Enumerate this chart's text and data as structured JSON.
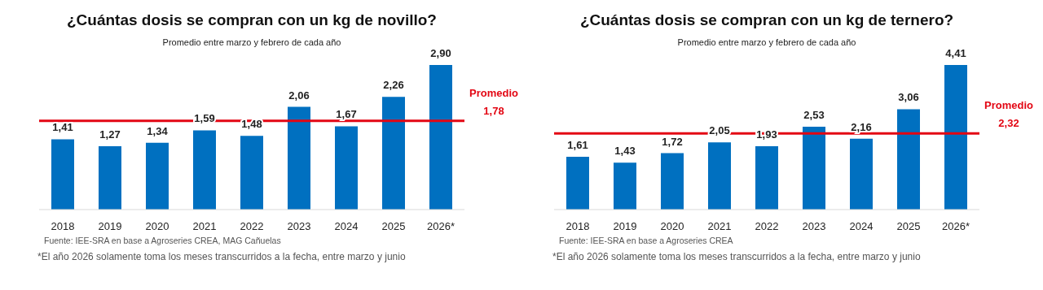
{
  "chart_data": [
    {
      "type": "bar",
      "title": "¿Cuántas dosis se compran con un kg de novillo?",
      "subtitle": "Promedio entre marzo y febrero de cada año",
      "categories": [
        "2018",
        "2019",
        "2020",
        "2021",
        "2022",
        "2023",
        "2024",
        "2025",
        "2026*"
      ],
      "values": [
        1.41,
        1.27,
        1.34,
        1.59,
        1.48,
        2.06,
        1.67,
        2.26,
        2.9
      ],
      "value_labels": [
        "1,41",
        "1,27",
        "1,34",
        "1,59",
        "1,48",
        "2,06",
        "1,67",
        "2,26",
        "2,90"
      ],
      "color": "#0070c0",
      "ref_lines": [
        {
          "axis": "y",
          "value": 1.78,
          "label": "Promedio 1,78",
          "color": "#e30613"
        }
      ],
      "annotations": [
        "Fuente: IEE-SRA en base a Agroseries CREA, MAG Cañuelas",
        "*El año 2026 solamente toma los meses transcurridos a la fecha, entre marzo y junio"
      ],
      "tick_labels": "x"
    },
    {
      "type": "bar",
      "title": "¿Cuántas dosis se compran con un kg de ternero?",
      "subtitle": "Promedio entre marzo y febrero de cada año",
      "categories": [
        "2018",
        "2019",
        "2020",
        "2021",
        "2022",
        "2023",
        "2024",
        "2025",
        "2026*"
      ],
      "values": [
        1.61,
        1.43,
        1.72,
        2.05,
        1.93,
        2.53,
        2.16,
        3.06,
        4.41
      ],
      "value_labels": [
        "1,61",
        "1,43",
        "1,72",
        "2,05",
        "1,93",
        "2,53",
        "2,16",
        "3,06",
        "4,41"
      ],
      "color": "#0070c0",
      "ref_lines": [
        {
          "axis": "y",
          "value": 2.32,
          "label": "Promedio 2,32",
          "color": "#e30613"
        }
      ],
      "annotations": [
        "Fuente: IEE-SRA en base a Agroseries CREA",
        "*El año 2026 solamente toma los meses transcurridos a la fecha, entre marzo y junio"
      ],
      "tick_labels": "x"
    }
  ]
}
